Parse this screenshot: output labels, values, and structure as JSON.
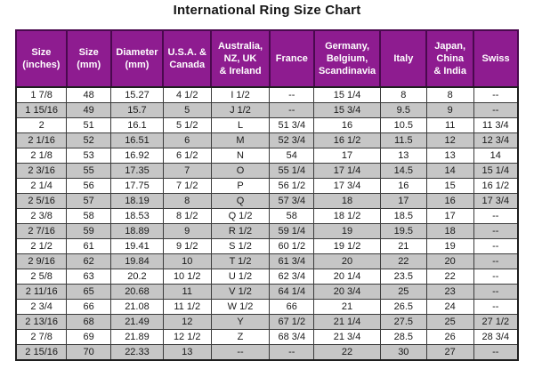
{
  "title": "International Ring Size Chart",
  "colors": {
    "header_bg": "#8e1c90",
    "header_text": "#ffffff",
    "stripe_gray": "#c6c6c6",
    "grid_line": "#3b3b3b",
    "outer_border": "#1e1e1e",
    "body_text": "#1a1a1a"
  },
  "chart_data": {
    "type": "table",
    "title": "International Ring Size Chart",
    "columns": [
      "Size\n(inches)",
      "Size\n(mm)",
      "Diameter\n(mm)",
      "U.S.A. &\nCanada",
      "Australia,\nNZ, UK\n& Ireland",
      "France",
      "Germany,\nBelgium,\nScandinavia",
      "Italy",
      "Japan,\nChina\n& India",
      "Swiss"
    ],
    "rows": [
      [
        "1 7/8",
        "48",
        "15.27",
        "4 1/2",
        "I 1/2",
        "--",
        "15 1/4",
        "8",
        "8",
        "--"
      ],
      [
        "1 15/16",
        "49",
        "15.7",
        "5",
        "J 1/2",
        "--",
        "15 3/4",
        "9.5",
        "9",
        "--"
      ],
      [
        "2",
        "51",
        "16.1",
        "5 1/2",
        "L",
        "51 3/4",
        "16",
        "10.5",
        "11",
        "11 3/4"
      ],
      [
        "2 1/16",
        "52",
        "16.51",
        "6",
        "M",
        "52 3/4",
        "16 1/2",
        "11.5",
        "12",
        "12 3/4"
      ],
      [
        "2 1/8",
        "53",
        "16.92",
        "6 1/2",
        "N",
        "54",
        "17",
        "13",
        "13",
        "14"
      ],
      [
        "2 3/16",
        "55",
        "17.35",
        "7",
        "O",
        "55 1/4",
        "17 1/4",
        "14.5",
        "14",
        "15 1/4"
      ],
      [
        "2 1/4",
        "56",
        "17.75",
        "7 1/2",
        "P",
        "56 1/2",
        "17 3/4",
        "16",
        "15",
        "16 1/2"
      ],
      [
        "2 5/16",
        "57",
        "18.19",
        "8",
        "Q",
        "57 3/4",
        "18",
        "17",
        "16",
        "17 3/4"
      ],
      [
        "2 3/8",
        "58",
        "18.53",
        "8 1/2",
        "Q 1/2",
        "58",
        "18 1/2",
        "18.5",
        "17",
        "--"
      ],
      [
        "2 7/16",
        "59",
        "18.89",
        "9",
        "R 1/2",
        "59 1/4",
        "19",
        "19.5",
        "18",
        "--"
      ],
      [
        "2 1/2",
        "61",
        "19.41",
        "9 1/2",
        "S 1/2",
        "60 1/2",
        "19 1/2",
        "21",
        "19",
        "--"
      ],
      [
        "2 9/16",
        "62",
        "19.84",
        "10",
        "T 1/2",
        "61 3/4",
        "20",
        "22",
        "20",
        "--"
      ],
      [
        "2 5/8",
        "63",
        "20.2",
        "10 1/2",
        "U 1/2",
        "62 3/4",
        "20 1/4",
        "23.5",
        "22",
        "--"
      ],
      [
        "2 11/16",
        "65",
        "20.68",
        "11",
        "V 1/2",
        "64 1/4",
        "20 3/4",
        "25",
        "23",
        "--"
      ],
      [
        "2 3/4",
        "66",
        "21.08",
        "11 1/2",
        "W 1/2",
        "66",
        "21",
        "26.5",
        "24",
        "--"
      ],
      [
        "2 13/16",
        "68",
        "21.49",
        "12",
        "Y",
        "67 1/2",
        "21 1/4",
        "27.5",
        "25",
        "27 1/2"
      ],
      [
        "2 7/8",
        "69",
        "21.89",
        "12 1/2",
        "Z",
        "68 3/4",
        "21 3/4",
        "28.5",
        "26",
        "28 3/4"
      ],
      [
        "2 15/16",
        "70",
        "22.33",
        "13",
        "--",
        "--",
        "22",
        "30",
        "27",
        "--"
      ]
    ]
  }
}
